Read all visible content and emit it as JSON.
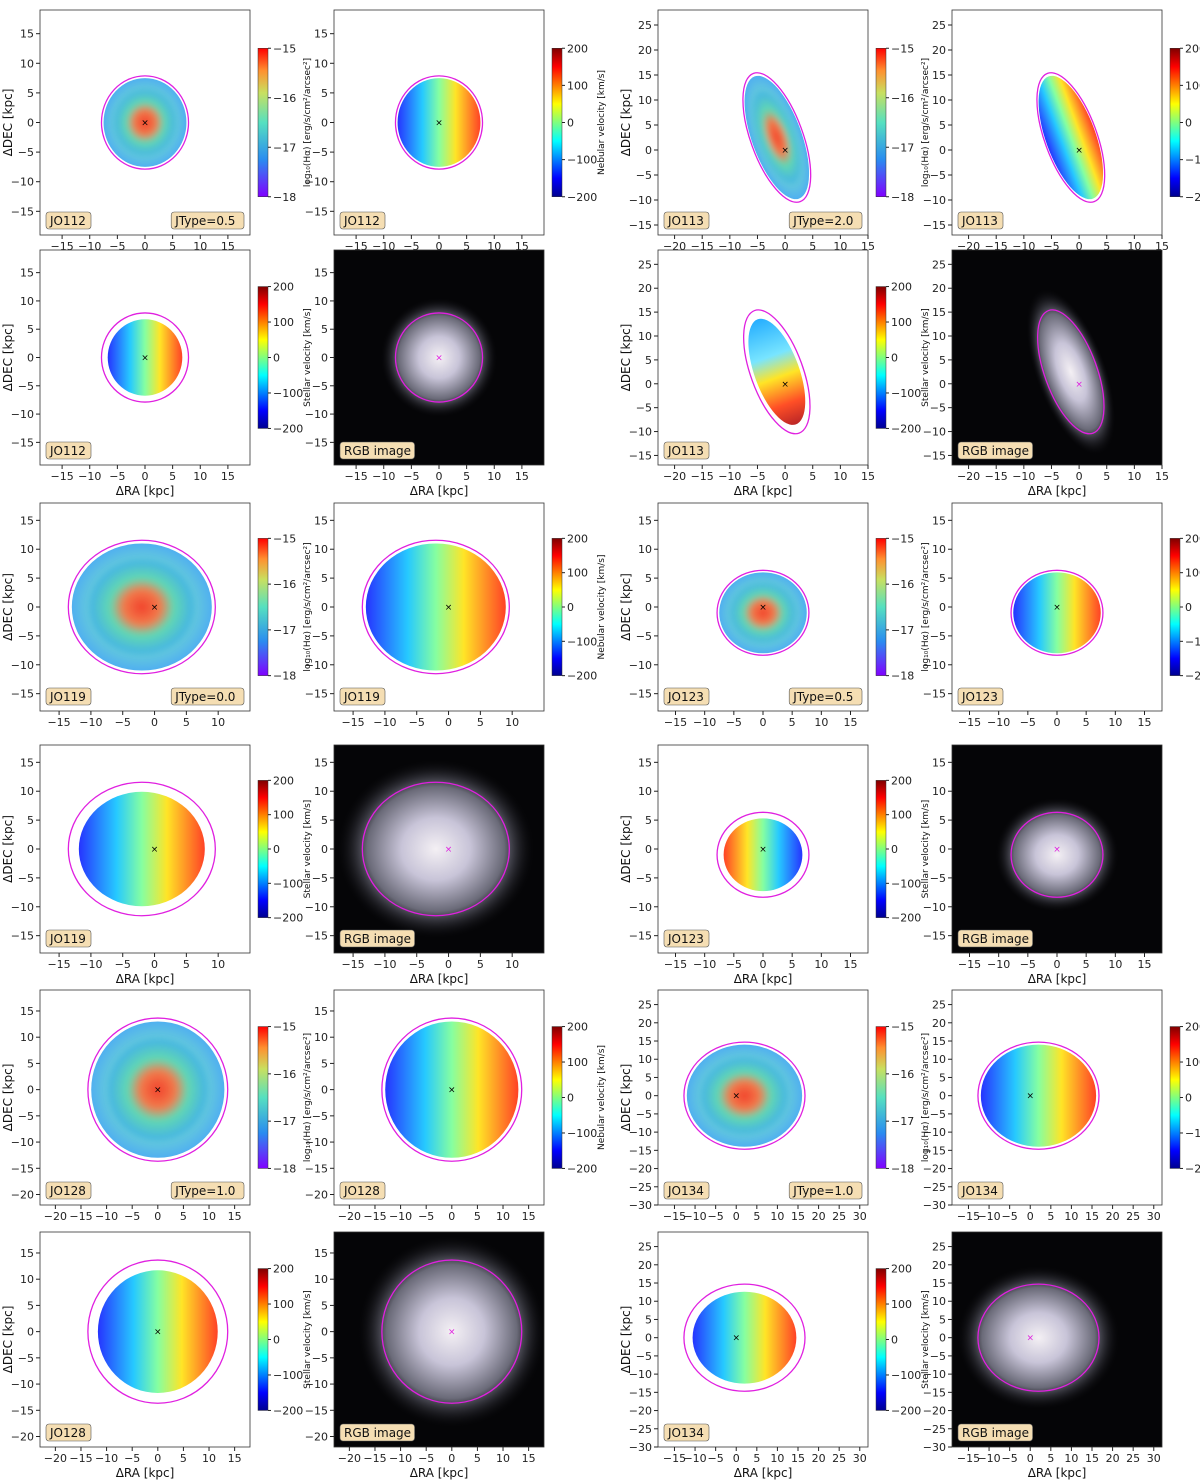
{
  "labels": {
    "ra_axis": "ΔRA [kpc]",
    "dec_axis": "ΔDEC [kpc]",
    "cbar_halpha": "log₁₀(Hα) [erg/s/cm²/arcsec²]",
    "cbar_nebular": "Nebular velocity [km/s]",
    "cbar_stellar": "Stellar velocity [km/s]",
    "rgb": "RGB image"
  },
  "colors": {
    "contour": "#e020e0",
    "label_box": "#f5deb3",
    "nebular_cmap": "jet",
    "halpha_cmap": "rainbow_r"
  },
  "chart_data": [
    {
      "galaxy": "JO112",
      "panel": "Halpha",
      "jtype": "JType=0.5",
      "cbar": [
        -18,
        -17,
        -16,
        -15
      ],
      "xticks": [
        -15,
        -10,
        -5,
        0,
        5,
        10,
        15
      ],
      "yticks": [
        -15,
        -10,
        -5,
        0,
        5,
        10,
        15
      ],
      "xlim": [
        -19,
        19
      ],
      "ylim": [
        -19,
        19
      ]
    },
    {
      "galaxy": "JO112",
      "panel": "nebular",
      "cbar": [
        -200,
        -100,
        0,
        100,
        200
      ],
      "xticks": [
        -15,
        -10,
        -5,
        0,
        5,
        10,
        15
      ],
      "yticks": [
        -15,
        -10,
        -5,
        0,
        5,
        10,
        15
      ],
      "xlim": [
        -19,
        19
      ],
      "ylim": [
        -19,
        19
      ]
    },
    {
      "galaxy": "JO113",
      "panel": "Halpha",
      "jtype": "JType=2.0",
      "cbar": [
        -18,
        -17,
        -16,
        -15
      ],
      "xticks": [
        -20,
        -15,
        -10,
        -5,
        0,
        5,
        10,
        15
      ],
      "yticks": [
        -15,
        -10,
        -5,
        0,
        5,
        10,
        15,
        20,
        25
      ],
      "xlim": [
        -23,
        15
      ],
      "ylim": [
        -17,
        28
      ]
    },
    {
      "galaxy": "JO113",
      "panel": "nebular",
      "cbar": [
        -200,
        -100,
        0,
        100,
        200
      ],
      "xticks": [
        -20,
        -15,
        -10,
        -5,
        0,
        5,
        10,
        15
      ],
      "yticks": [
        -15,
        -10,
        -5,
        0,
        5,
        10,
        15,
        20,
        25
      ],
      "xlim": [
        -23,
        15
      ],
      "ylim": [
        -17,
        28
      ]
    },
    {
      "galaxy": "JO112",
      "panel": "stellar",
      "cbar": [
        -200,
        -100,
        0,
        100,
        200
      ],
      "xticks": [
        -15,
        -10,
        -5,
        0,
        5,
        10,
        15
      ],
      "yticks": [
        -15,
        -10,
        -5,
        0,
        5,
        10,
        15
      ],
      "xlim": [
        -19,
        19
      ],
      "ylim": [
        -19,
        19
      ]
    },
    {
      "galaxy": "JO112",
      "panel": "rgb",
      "xticks": [
        -15,
        -10,
        -5,
        0,
        5,
        10,
        15
      ],
      "yticks": [
        -15,
        -10,
        -5,
        0,
        5,
        10,
        15
      ],
      "xlim": [
        -19,
        19
      ],
      "ylim": [
        -19,
        19
      ]
    },
    {
      "galaxy": "JO113",
      "panel": "stellar",
      "cbar": [
        -200,
        -100,
        0,
        100,
        200
      ],
      "xticks": [
        -20,
        -15,
        -10,
        -5,
        0,
        5,
        10,
        15
      ],
      "yticks": [
        -15,
        -10,
        -5,
        0,
        5,
        10,
        15,
        20,
        25
      ],
      "xlim": [
        -23,
        15
      ],
      "ylim": [
        -17,
        28
      ]
    },
    {
      "galaxy": "JO113",
      "panel": "rgb",
      "xticks": [
        -20,
        -15,
        -10,
        -5,
        0,
        5,
        10,
        15
      ],
      "yticks": [
        -15,
        -10,
        -5,
        0,
        5,
        10,
        15,
        20,
        25
      ],
      "xlim": [
        -23,
        15
      ],
      "ylim": [
        -17,
        28
      ]
    },
    {
      "galaxy": "JO119",
      "panel": "Halpha",
      "jtype": "JType=0.0",
      "cbar": [
        -18,
        -17,
        -16,
        -15
      ],
      "xticks": [
        -15,
        -10,
        -5,
        0,
        5,
        10
      ],
      "yticks": [
        -15,
        -10,
        -5,
        0,
        5,
        10,
        15
      ],
      "xlim": [
        -18,
        15
      ],
      "ylim": [
        -18,
        18
      ]
    },
    {
      "galaxy": "JO119",
      "panel": "nebular",
      "cbar": [
        -200,
        -100,
        0,
        100,
        200
      ],
      "xticks": [
        -15,
        -10,
        -5,
        0,
        5,
        10
      ],
      "yticks": [
        -15,
        -10,
        -5,
        0,
        5,
        10,
        15
      ],
      "xlim": [
        -18,
        15
      ],
      "ylim": [
        -18,
        18
      ]
    },
    {
      "galaxy": "JO123",
      "panel": "Halpha",
      "jtype": "JType=0.5",
      "cbar": [
        -18,
        -17,
        -16,
        -15
      ],
      "xticks": [
        -15,
        -10,
        -5,
        0,
        5,
        10,
        15
      ],
      "yticks": [
        -15,
        -10,
        -5,
        0,
        5,
        10,
        15
      ],
      "xlim": [
        -18,
        18
      ],
      "ylim": [
        -18,
        18
      ]
    },
    {
      "galaxy": "JO123",
      "panel": "nebular",
      "cbar": [
        -200,
        -100,
        0,
        100,
        200
      ],
      "xticks": [
        -15,
        -10,
        -5,
        0,
        5,
        10,
        15
      ],
      "yticks": [
        -15,
        -10,
        -5,
        0,
        5,
        10,
        15
      ],
      "xlim": [
        -18,
        18
      ],
      "ylim": [
        -18,
        18
      ]
    },
    {
      "galaxy": "JO119",
      "panel": "stellar",
      "cbar": [
        -200,
        -100,
        0,
        100,
        200
      ],
      "xticks": [
        -15,
        -10,
        -5,
        0,
        5,
        10
      ],
      "yticks": [
        -15,
        -10,
        -5,
        0,
        5,
        10,
        15
      ],
      "xlim": [
        -18,
        15
      ],
      "ylim": [
        -18,
        18
      ]
    },
    {
      "galaxy": "JO119",
      "panel": "rgb",
      "xticks": [
        -15,
        -10,
        -5,
        0,
        5,
        10
      ],
      "yticks": [
        -15,
        -10,
        -5,
        0,
        5,
        10,
        15
      ],
      "xlim": [
        -18,
        15
      ],
      "ylim": [
        -18,
        18
      ]
    },
    {
      "galaxy": "JO123",
      "panel": "stellar",
      "cbar": [
        -200,
        -100,
        0,
        100,
        200
      ],
      "xticks": [
        -15,
        -10,
        -5,
        0,
        5,
        10,
        15
      ],
      "yticks": [
        -15,
        -10,
        -5,
        0,
        5,
        10,
        15
      ],
      "xlim": [
        -18,
        18
      ],
      "ylim": [
        -18,
        18
      ]
    },
    {
      "galaxy": "JO123",
      "panel": "rgb",
      "xticks": [
        -15,
        -10,
        -5,
        0,
        5,
        10,
        15
      ],
      "yticks": [
        -15,
        -10,
        -5,
        0,
        5,
        10,
        15
      ],
      "xlim": [
        -18,
        18
      ],
      "ylim": [
        -18,
        18
      ]
    },
    {
      "galaxy": "JO128",
      "panel": "Halpha",
      "jtype": "JType=1.0",
      "cbar": [
        -18,
        -17,
        -16,
        -15
      ],
      "xticks": [
        -20,
        -15,
        -10,
        -5,
        0,
        5,
        10,
        15
      ],
      "yticks": [
        -20,
        -15,
        -10,
        -5,
        0,
        5,
        10,
        15
      ],
      "xlim": [
        -23,
        18
      ],
      "ylim": [
        -22,
        19
      ]
    },
    {
      "galaxy": "JO128",
      "panel": "nebular",
      "cbar": [
        -200,
        -100,
        0,
        100,
        200
      ],
      "xticks": [
        -20,
        -15,
        -10,
        -5,
        0,
        5,
        10,
        15
      ],
      "yticks": [
        -20,
        -15,
        -10,
        -5,
        0,
        5,
        10,
        15
      ],
      "xlim": [
        -23,
        18
      ],
      "ylim": [
        -22,
        19
      ]
    },
    {
      "galaxy": "JO134",
      "panel": "Halpha",
      "jtype": "JType=1.0",
      "cbar": [
        -18,
        -17,
        -16,
        -15
      ],
      "xticks": [
        -15,
        -10,
        -5,
        0,
        5,
        10,
        15,
        20,
        25,
        30
      ],
      "yticks": [
        -30,
        -25,
        -20,
        -15,
        -10,
        -5,
        0,
        5,
        10,
        15,
        20,
        25
      ],
      "xlim": [
        -19,
        32
      ],
      "ylim": [
        -30,
        29
      ]
    },
    {
      "galaxy": "JO134",
      "panel": "nebular",
      "cbar": [
        -200,
        -100,
        0,
        100,
        200
      ],
      "xticks": [
        -15,
        -10,
        -5,
        0,
        5,
        10,
        15,
        20,
        25,
        30
      ],
      "yticks": [
        -30,
        -25,
        -20,
        -15,
        -10,
        -5,
        0,
        5,
        10,
        15,
        20,
        25
      ],
      "xlim": [
        -19,
        32
      ],
      "ylim": [
        -30,
        29
      ]
    },
    {
      "galaxy": "JO128",
      "panel": "stellar",
      "cbar": [
        -200,
        -100,
        0,
        100,
        200
      ],
      "xticks": [
        -20,
        -15,
        -10,
        -5,
        0,
        5,
        10,
        15
      ],
      "yticks": [
        -20,
        -15,
        -10,
        -5,
        0,
        5,
        10,
        15
      ],
      "xlim": [
        -23,
        18
      ],
      "ylim": [
        -22,
        19
      ]
    },
    {
      "galaxy": "JO128",
      "panel": "rgb",
      "xticks": [
        -20,
        -15,
        -10,
        -5,
        0,
        5,
        10,
        15
      ],
      "yticks": [
        -20,
        -15,
        -10,
        -5,
        0,
        5,
        10,
        15
      ],
      "xlim": [
        -23,
        18
      ],
      "ylim": [
        -22,
        19
      ]
    },
    {
      "galaxy": "JO134",
      "panel": "stellar",
      "cbar": [
        -200,
        -100,
        0,
        100,
        200
      ],
      "xticks": [
        -15,
        -10,
        -5,
        0,
        5,
        10,
        15,
        20,
        25,
        30
      ],
      "yticks": [
        -30,
        -25,
        -20,
        -15,
        -10,
        -5,
        0,
        5,
        10,
        15,
        20,
        25
      ],
      "xlim": [
        -19,
        32
      ],
      "ylim": [
        -30,
        29
      ]
    },
    {
      "galaxy": "JO134",
      "panel": "rgb",
      "xticks": [
        -15,
        -10,
        -5,
        0,
        5,
        10,
        15,
        20,
        25,
        30
      ],
      "yticks": [
        -30,
        -25,
        -20,
        -15,
        -10,
        -5,
        0,
        5,
        10,
        15,
        20,
        25
      ],
      "xlim": [
        -19,
        32
      ],
      "ylim": [
        -30,
        29
      ]
    }
  ]
}
